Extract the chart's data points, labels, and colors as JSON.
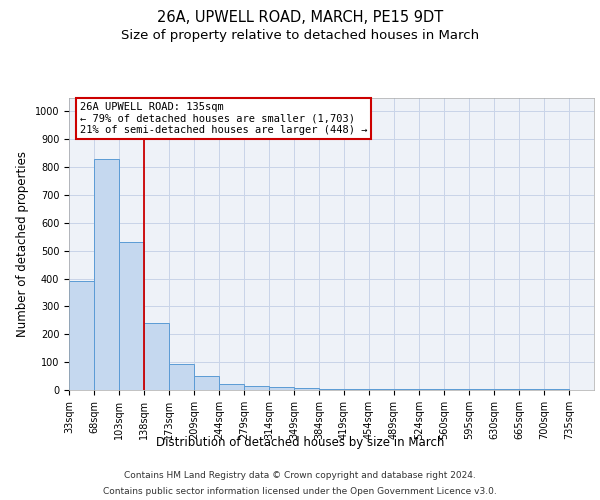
{
  "title1": "26A, UPWELL ROAD, MARCH, PE15 9DT",
  "title2": "Size of property relative to detached houses in March",
  "xlabel": "Distribution of detached houses by size in March",
  "ylabel": "Number of detached properties",
  "bin_edges": [
    33,
    68,
    103,
    138,
    173,
    209,
    244,
    279,
    314,
    349,
    384,
    419,
    454,
    489,
    524,
    560,
    595,
    630,
    665,
    700,
    735
  ],
  "bar_heights": [
    390,
    830,
    530,
    240,
    95,
    50,
    20,
    15,
    12,
    8,
    5,
    5,
    5,
    3,
    3,
    3,
    3,
    3,
    3,
    3
  ],
  "bar_color": "#c5d8ef",
  "bar_edge_color": "#5b9bd5",
  "bar_edge_width": 0.7,
  "red_line_x": 138,
  "red_line_color": "#cc0000",
  "annotation_text": "26A UPWELL ROAD: 135sqm\n← 79% of detached houses are smaller (1,703)\n21% of semi-detached houses are larger (448) →",
  "annotation_box_color": "white",
  "annotation_box_edge_color": "#cc0000",
  "ylim": [
    0,
    1050
  ],
  "yticks": [
    0,
    100,
    200,
    300,
    400,
    500,
    600,
    700,
    800,
    900,
    1000
  ],
  "grid_color": "#c8d4e8",
  "bg_color": "#eef2f8",
  "footer1": "Contains HM Land Registry data © Crown copyright and database right 2024.",
  "footer2": "Contains public sector information licensed under the Open Government Licence v3.0.",
  "title1_fontsize": 10.5,
  "title2_fontsize": 9.5,
  "tick_fontsize": 7,
  "label_fontsize": 8.5,
  "footer_fontsize": 6.5,
  "annotation_fontsize": 7.5
}
